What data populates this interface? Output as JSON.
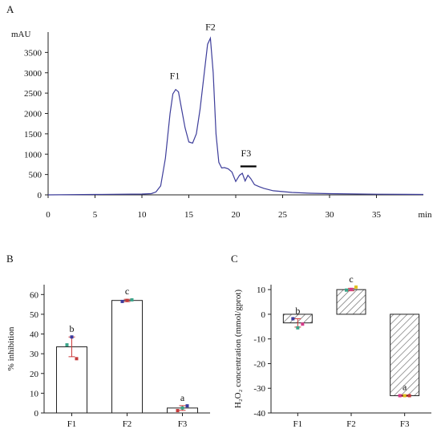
{
  "panels": {
    "a": "A",
    "b": "B",
    "c": "C"
  },
  "chart_data": [
    {
      "id": "A",
      "type": "line",
      "title": "",
      "xlabel": "min",
      "ylabel": "mAU",
      "xlim": [
        0,
        40
      ],
      "ylim": [
        0,
        4000
      ],
      "xticks": [
        0,
        5,
        10,
        15,
        20,
        25,
        30,
        35
      ],
      "yticks": [
        0,
        500,
        1000,
        1500,
        2000,
        2500,
        3000,
        3500
      ],
      "line_color": "#3d3d9a",
      "x": [
        0,
        5,
        10,
        11,
        11.5,
        12,
        12.5,
        13,
        13.3,
        13.6,
        13.9,
        14.2,
        14.6,
        15.0,
        15.4,
        15.8,
        16.2,
        16.6,
        17.0,
        17.3,
        17.6,
        17.9,
        18.2,
        18.5,
        18.8,
        19.2,
        19.6,
        20.0,
        20.4,
        20.7,
        21.0,
        21.3,
        21.6,
        22.0,
        22.5,
        23,
        24,
        26,
        28,
        30,
        35,
        40
      ],
      "y": [
        0,
        10,
        20,
        30,
        70,
        220,
        900,
        2000,
        2480,
        2590,
        2530,
        2150,
        1650,
        1300,
        1270,
        1500,
        2100,
        2900,
        3700,
        3850,
        3000,
        1500,
        800,
        660,
        670,
        640,
        560,
        330,
        480,
        530,
        340,
        480,
        400,
        250,
        200,
        160,
        100,
        60,
        40,
        30,
        15,
        10
      ],
      "annotations": [
        {
          "label": "F1",
          "x": 13.5,
          "y": 2850
        },
        {
          "label": "F2",
          "x": 17.3,
          "y": 4050
        },
        {
          "label": "F3",
          "x": 21.1,
          "y": 950,
          "bar_from": 20.5,
          "bar_to": 22.2,
          "bar_y": 700
        }
      ]
    },
    {
      "id": "B",
      "type": "bar",
      "title": "",
      "ylabel": "% inhibition",
      "xlabel": "",
      "categories": [
        "F1",
        "F2",
        "F3"
      ],
      "values": [
        33.5,
        57.0,
        2.5
      ],
      "errors": [
        5.0,
        0.6,
        1.2
      ],
      "letters": [
        "b",
        "c",
        "a"
      ],
      "ylim": [
        0,
        65
      ],
      "yticks": [
        0,
        10,
        20,
        30,
        40,
        50,
        60
      ],
      "points": [
        [
          34.5,
          38.5,
          27.5
        ],
        [
          56.5,
          57.0,
          57.3
        ],
        [
          1.2,
          2.5,
          3.6
        ]
      ],
      "point_colors": [
        "#3aa58a",
        "#3b3b9e",
        "#c43a3a"
      ],
      "bar_fill": "#ffffff",
      "hatched": false
    },
    {
      "id": "C",
      "type": "bar",
      "title": "",
      "ylabel": "H₂O₂ concentration (mmol/gprot)",
      "xlabel": "",
      "categories": [
        "F1",
        "F2",
        "F3"
      ],
      "values": [
        -3.5,
        10.0,
        -33.0
      ],
      "errors": [
        1.7,
        0.5,
        0.3
      ],
      "letters": [
        "b",
        "c",
        "a"
      ],
      "ylim": [
        -40,
        12
      ],
      "yticks": [
        -40,
        -30,
        -20,
        -10,
        0,
        10
      ],
      "points": [
        [
          -1.8,
          -5.5,
          -4.0
        ],
        [
          9.8,
          10.1,
          11.0
        ],
        [
          -33.0,
          -33.0,
          -33.0
        ]
      ],
      "point_colors": [
        "#3b3b9e",
        "#3aa58a",
        "#d63a8a",
        "#e0c020",
        "#c43a3a"
      ],
      "bar_fill": "#ffffff",
      "hatched": true
    }
  ]
}
